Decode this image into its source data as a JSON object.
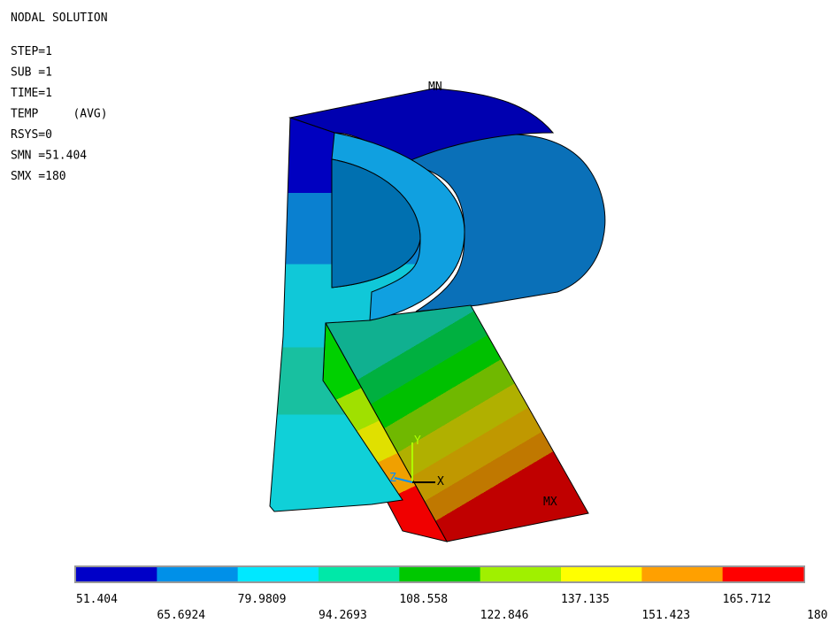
{
  "header": {
    "title": "NODAL SOLUTION",
    "info": [
      "STEP=1",
      "SUB =1",
      "TIME=1",
      "TEMP     (AVG)",
      "RSYS=0",
      "SMN =51.404",
      "SMX =180"
    ]
  },
  "labels": {
    "min": "MN",
    "max": "MX"
  },
  "triad": {
    "x": "X",
    "y": "Y",
    "z": "Z"
  },
  "legend": {
    "colors": [
      "#0000c8",
      "#0090e8",
      "#00e8ff",
      "#00e8a8",
      "#00c800",
      "#a0f000",
      "#ffff00",
      "#ffa000",
      "#ff0000"
    ],
    "values": [
      51.404,
      65.6924,
      79.9809,
      94.2693,
      108.558,
      122.846,
      137.135,
      151.423,
      165.712,
      180
    ]
  }
}
